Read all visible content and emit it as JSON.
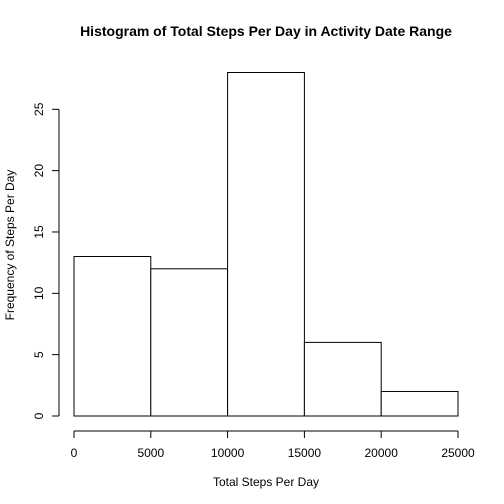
{
  "chart_data": {
    "type": "bar",
    "title": "Histogram of Total Steps Per Day in Activity Date Range",
    "xlabel": "Total Steps Per Day",
    "ylabel": "Frequency of Steps Per Day",
    "bins": [
      {
        "from": 0,
        "to": 5000,
        "count": 13
      },
      {
        "from": 5000,
        "to": 10000,
        "count": 12
      },
      {
        "from": 10000,
        "to": 15000,
        "count": 28
      },
      {
        "from": 15000,
        "to": 20000,
        "count": 6
      },
      {
        "from": 20000,
        "to": 25000,
        "count": 2
      }
    ],
    "xlim": [
      0,
      25000
    ],
    "ylim": [
      0,
      28
    ],
    "x_ticks": [
      0,
      5000,
      10000,
      15000,
      20000,
      25000
    ],
    "y_ticks": [
      0,
      5,
      10,
      15,
      20,
      25
    ],
    "grid": false,
    "bar_fill": "#ffffff",
    "bar_stroke": "#000000"
  }
}
